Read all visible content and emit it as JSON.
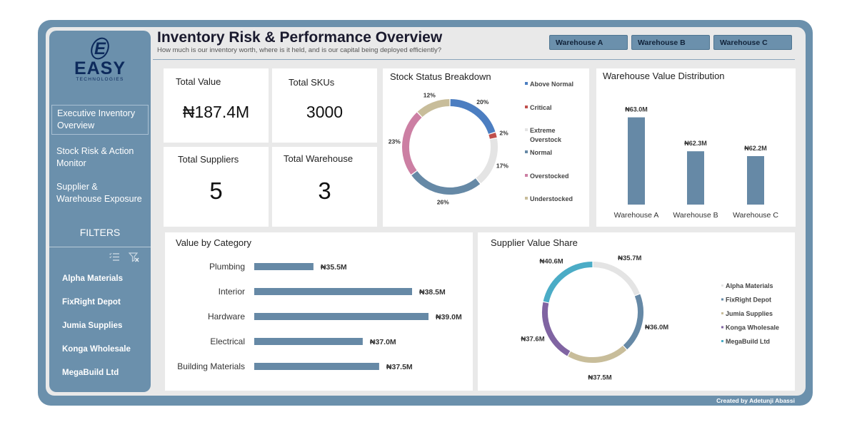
{
  "brand": {
    "logo_letter": "E",
    "name": "EASY",
    "tagline": "TECHNOLOGIES"
  },
  "header": {
    "title": "Inventory Risk & Performance Overview",
    "subtitle": "How much is our inventory worth, where is it held, and is our capital being deployed efficiently?"
  },
  "warehouse_buttons": [
    "Warehouse A",
    "Warehouse B",
    "Warehouse C"
  ],
  "nav": {
    "items": [
      {
        "line1": "Executive Inventory",
        "line2": "Overview",
        "active": true
      },
      {
        "line1": "Stock Risk & Action",
        "line2": "Monitor",
        "active": false
      },
      {
        "line1": "Supplier &",
        "line2": "Warehouse Exposure",
        "active": false
      }
    ]
  },
  "filters": {
    "title": "FILTERS",
    "items": [
      "Alpha Materials",
      "FixRight Depot",
      "Jumia Supplies",
      "Konga Wholesale",
      "MegaBuild Ltd"
    ]
  },
  "kpis": {
    "total_value": {
      "label": "Total Value",
      "value": "₦187.4M"
    },
    "total_skus": {
      "label": "Total SKUs",
      "value": "3000"
    },
    "total_suppliers": {
      "label": "Total Suppliers",
      "value": "5"
    },
    "total_warehouse": {
      "label": "Total Warehouse",
      "value": "3"
    }
  },
  "colors": {
    "frame": "#6b90ac",
    "bar": "#6689a6",
    "donut_above_normal": "#4c7ec1",
    "donut_critical": "#c0504d",
    "donut_extreme": "#e4e4e4",
    "donut_normal": "#6689a6",
    "donut_overstocked": "#cc7fa3",
    "donut_understocked": "#c8bd9a",
    "sup_alpha": "#e4e4e4",
    "sup_fixright": "#6689a6",
    "sup_jumia": "#c8bd9a",
    "sup_konga": "#8064a2",
    "sup_megabuild": "#4bacc6"
  },
  "chart_data": [
    {
      "type": "pie",
      "title": "Stock Status Breakdown",
      "categories": [
        "Above Normal",
        "Critical",
        "Extreme Overstock",
        "Normal",
        "Overstocked",
        "Understocked"
      ],
      "legend_labels": [
        [
          "Above Normal"
        ],
        [
          "Critical"
        ],
        [
          "Extreme",
          "Overstock"
        ],
        [
          "Normal"
        ],
        [
          "Overstocked"
        ],
        [
          "Understocked"
        ]
      ],
      "values": [
        20,
        2,
        17,
        26,
        23,
        12
      ],
      "labels": [
        "20%",
        "2%",
        "17%",
        "26%",
        "23%",
        "12%"
      ],
      "legend_position": "right"
    },
    {
      "type": "bar",
      "title": "Warehouse Value Distribution",
      "categories": [
        "Warehouse A",
        "Warehouse B",
        "Warehouse C"
      ],
      "values": [
        63.0,
        62.3,
        62.2
      ],
      "labels": [
        "₦63.0M",
        "₦62.3M",
        "₦62.2M"
      ],
      "ylim": [
        61.2,
        63.2
      ]
    },
    {
      "type": "bar",
      "orientation": "horizontal",
      "title": "Value by Category",
      "categories": [
        "Plumbing",
        "Interior",
        "Hardware",
        "Electrical",
        "Building Materials"
      ],
      "values": [
        35.5,
        38.5,
        39.0,
        37.0,
        37.5
      ],
      "labels": [
        "₦35.5M",
        "₦38.5M",
        "₦39.0M",
        "₦37.0M",
        "₦37.5M"
      ],
      "xlim": [
        33.7,
        39.0
      ]
    },
    {
      "type": "pie",
      "title": "Supplier Value Share",
      "categories": [
        "Alpha Materials",
        "FixRight Depot",
        "Jumia Supplies",
        "Konga Wholesale",
        "MegaBuild Ltd"
      ],
      "values": [
        35.7,
        36.0,
        37.5,
        37.6,
        40.6
      ],
      "labels": [
        "₦35.7M",
        "₦36.0M",
        "₦37.5M",
        "₦37.6M",
        "₦40.6M"
      ],
      "legend_position": "right"
    }
  ],
  "footer": {
    "credit": "Created by Adetunji Abassi"
  }
}
